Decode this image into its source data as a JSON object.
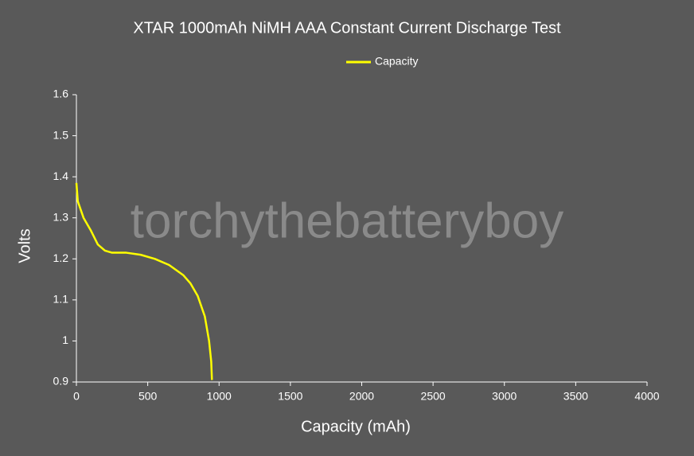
{
  "chart_data": {
    "type": "line",
    "title": "XTAR 1000mAh NiMH AAA Constant Current Discharge Test",
    "x_label": "Capacity (mAh)",
    "y_label": "Volts",
    "annotation": "torchythebatteryboy",
    "x": [
      0,
      10,
      50,
      100,
      150,
      200,
      250,
      350,
      450,
      550,
      650,
      750,
      800,
      850,
      900,
      930,
      945,
      950
    ],
    "series": [
      {
        "name": "Capacity",
        "color": "#ffff00",
        "values": [
          1.385,
          1.34,
          1.3,
          1.27,
          1.235,
          1.22,
          1.215,
          1.215,
          1.21,
          1.2,
          1.185,
          1.16,
          1.14,
          1.11,
          1.06,
          1.0,
          0.95,
          0.905
        ]
      }
    ],
    "xlim": [
      0,
      4000
    ],
    "xticks": [
      0,
      500,
      1000,
      1500,
      2000,
      2500,
      3000,
      3500,
      4000
    ],
    "ylim": [
      0.9,
      1.6
    ],
    "yticks": [
      0.9,
      1,
      1.1,
      1.2,
      1.3,
      1.4,
      1.5,
      1.6
    ],
    "legend": "top",
    "grid": false
  }
}
